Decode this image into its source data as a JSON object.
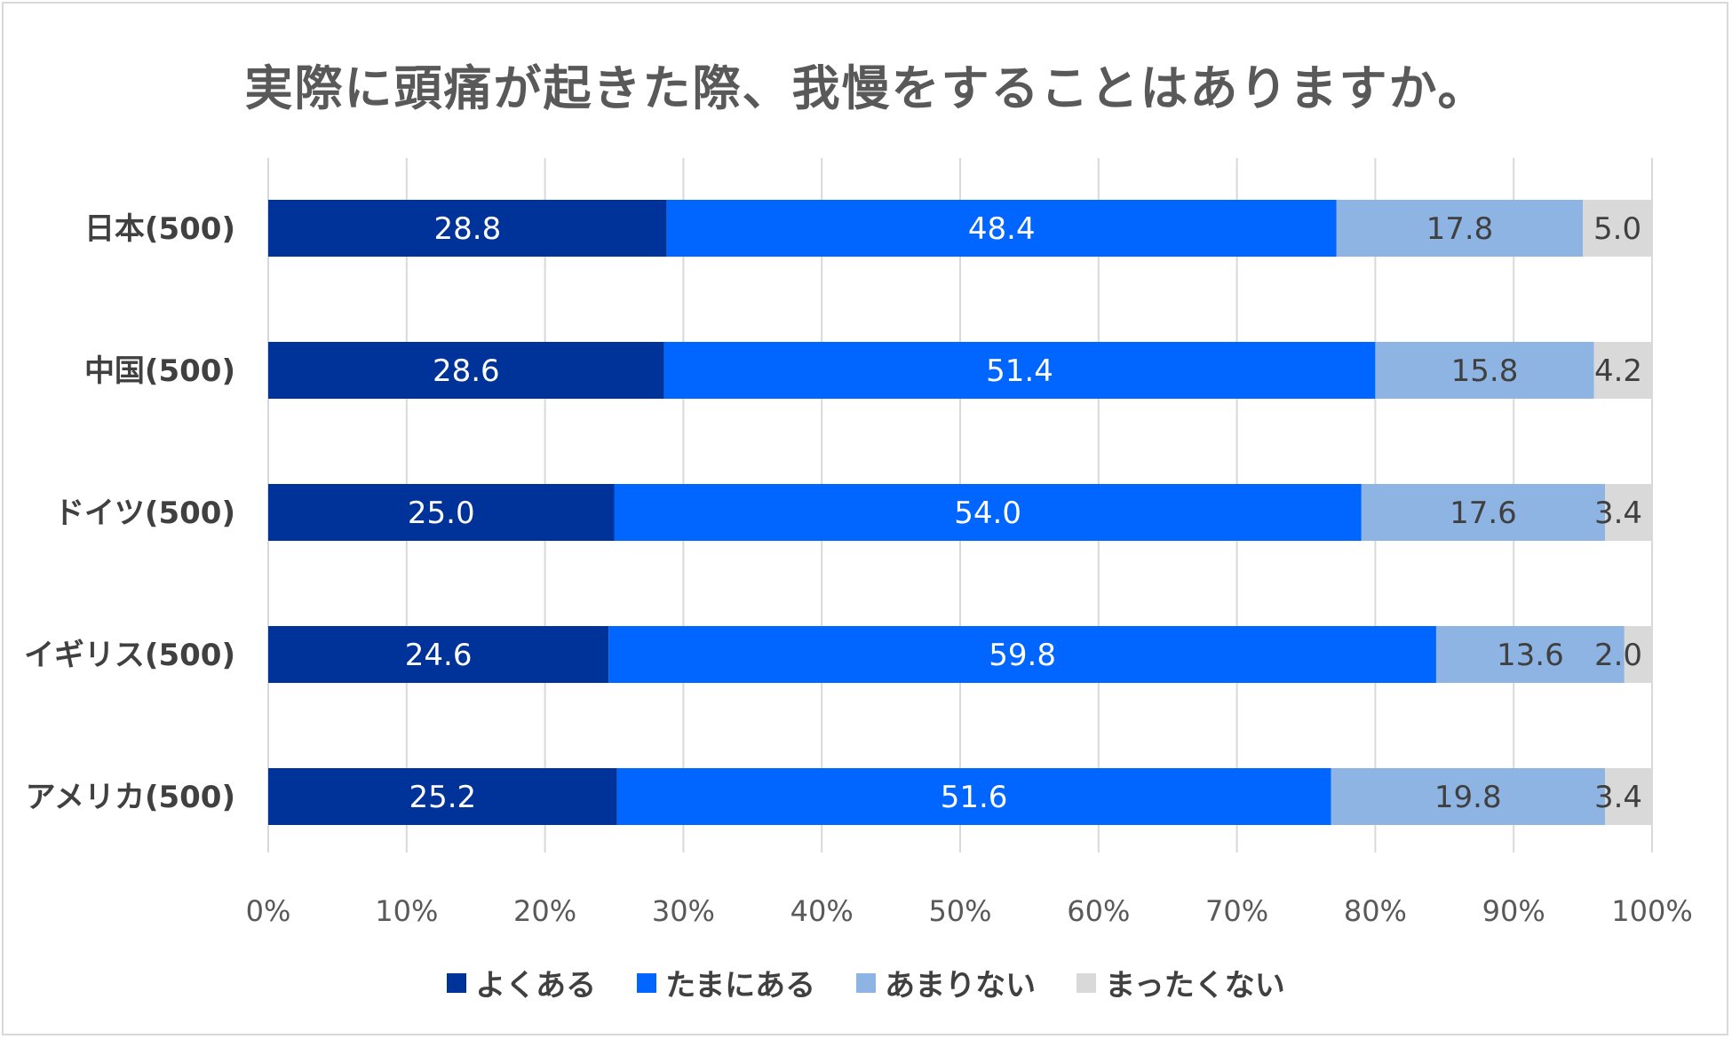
{
  "chart_data": {
    "type": "bar",
    "orientation": "horizontal",
    "stacked": "percent",
    "title": "実際に頭痛が起きた際、我慢をすることはありますか。",
    "categories": [
      "日本(500)",
      "中国(500)",
      "ドイツ(500)",
      "イギリス(500)",
      "アメリカ(500)"
    ],
    "series": [
      {
        "name": "よくある",
        "color": "#003399",
        "label_color": "#ffffff",
        "values": [
          28.8,
          28.6,
          25.0,
          24.6,
          25.2
        ],
        "labels": [
          "28.8",
          "28.6",
          "25.0",
          "24.6",
          "25.2"
        ]
      },
      {
        "name": "たまにある",
        "color": "#0066ff",
        "label_color": "#ffffff",
        "values": [
          48.4,
          51.4,
          54.0,
          59.8,
          51.6
        ],
        "labels": [
          "48.4",
          "51.4",
          "54.0",
          "59.8",
          "51.6"
        ]
      },
      {
        "name": "あまりない",
        "color": "#8eb4e3",
        "label_color": "#404040",
        "values": [
          17.8,
          15.8,
          17.6,
          13.6,
          19.8
        ],
        "labels": [
          "17.8",
          "15.8",
          "17.6",
          "13.6",
          "19.8"
        ]
      },
      {
        "name": "まったくない",
        "color": "#d9d9d9",
        "label_color": "#404040",
        "values": [
          5.0,
          4.2,
          3.4,
          2.0,
          3.4
        ],
        "labels": [
          "5.0",
          "4.2",
          "3.4",
          "2.0",
          "3.4"
        ]
      }
    ],
    "xlim": [
      0,
      100
    ],
    "x_ticks": [
      "0%",
      "10%",
      "20%",
      "30%",
      "40%",
      "50%",
      "60%",
      "70%",
      "80%",
      "90%",
      "100%"
    ],
    "grid": true,
    "legend_position": "bottom"
  }
}
